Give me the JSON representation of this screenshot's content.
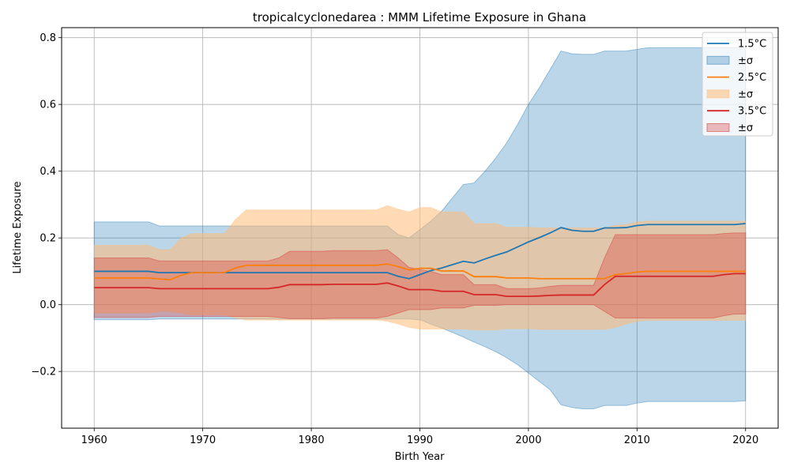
{
  "chart_data": {
    "type": "line",
    "title": "tropicalcyclonedarea : MMM Lifetime Exposure in Ghana",
    "xlabel": "Birth Year",
    "ylabel": "Lifetime Exposure",
    "xlim": [
      1957,
      2023
    ],
    "ylim": [
      -0.37,
      0.83
    ],
    "xticks": [
      1960,
      1970,
      1980,
      1990,
      2000,
      2010,
      2020
    ],
    "yticks": [
      -0.2,
      0.0,
      0.2,
      0.4,
      0.6,
      0.8
    ],
    "ytick_labels": [
      "−0.2",
      "0.0",
      "0.2",
      "0.4",
      "0.6",
      "0.8"
    ],
    "grid": true,
    "legend_position": "top-right",
    "x": [
      1960,
      1961,
      1962,
      1963,
      1964,
      1965,
      1966,
      1967,
      1968,
      1969,
      1970,
      1971,
      1972,
      1973,
      1974,
      1975,
      1976,
      1977,
      1978,
      1979,
      1980,
      1981,
      1982,
      1983,
      1984,
      1985,
      1986,
      1987,
      1988,
      1989,
      1990,
      1991,
      1992,
      1993,
      1994,
      1995,
      1996,
      1997,
      1998,
      1999,
      2000,
      2001,
      2002,
      2003,
      2004,
      2005,
      2006,
      2007,
      2008,
      2009,
      2010,
      2011,
      2012,
      2013,
      2014,
      2015,
      2016,
      2017,
      2018,
      2019,
      2020
    ],
    "series": [
      {
        "name": "1.5°C",
        "band_label": "±σ",
        "color": "#1f77b4",
        "band_color": "#1f77b4",
        "mean": [
          0.1,
          0.1,
          0.1,
          0.1,
          0.1,
          0.1,
          0.096,
          0.096,
          0.096,
          0.096,
          0.096,
          0.096,
          0.096,
          0.096,
          0.096,
          0.096,
          0.096,
          0.096,
          0.096,
          0.096,
          0.096,
          0.096,
          0.096,
          0.096,
          0.096,
          0.096,
          0.096,
          0.096,
          0.085,
          0.078,
          0.09,
          0.102,
          0.11,
          0.12,
          0.13,
          0.125,
          0.137,
          0.148,
          0.158,
          0.173,
          0.188,
          0.201,
          0.215,
          0.231,
          0.223,
          0.22,
          0.22,
          0.23,
          0.23,
          0.231,
          0.237,
          0.24,
          0.24,
          0.24,
          0.24,
          0.24,
          0.24,
          0.24,
          0.24,
          0.24,
          0.243
        ],
        "upper": [
          0.248,
          0.248,
          0.248,
          0.248,
          0.248,
          0.248,
          0.236,
          0.236,
          0.236,
          0.236,
          0.236,
          0.236,
          0.236,
          0.236,
          0.236,
          0.236,
          0.236,
          0.236,
          0.236,
          0.236,
          0.236,
          0.236,
          0.236,
          0.236,
          0.236,
          0.236,
          0.236,
          0.236,
          0.21,
          0.2,
          0.225,
          0.25,
          0.28,
          0.32,
          0.36,
          0.365,
          0.4,
          0.44,
          0.485,
          0.54,
          0.6,
          0.65,
          0.705,
          0.76,
          0.752,
          0.75,
          0.75,
          0.76,
          0.76,
          0.76,
          0.765,
          0.77,
          0.77,
          0.77,
          0.77,
          0.77,
          0.77,
          0.77,
          0.77,
          0.77,
          0.77
        ],
        "lower": [
          -0.045,
          -0.045,
          -0.045,
          -0.045,
          -0.045,
          -0.045,
          -0.043,
          -0.043,
          -0.043,
          -0.043,
          -0.043,
          -0.043,
          -0.043,
          -0.043,
          -0.043,
          -0.043,
          -0.043,
          -0.043,
          -0.043,
          -0.043,
          -0.043,
          -0.043,
          -0.043,
          -0.043,
          -0.043,
          -0.043,
          -0.043,
          -0.043,
          -0.043,
          -0.043,
          -0.045,
          -0.058,
          -0.07,
          -0.083,
          -0.097,
          -0.112,
          -0.126,
          -0.141,
          -0.159,
          -0.18,
          -0.205,
          -0.23,
          -0.255,
          -0.3,
          -0.308,
          -0.312,
          -0.312,
          -0.302,
          -0.302,
          -0.302,
          -0.295,
          -0.29,
          -0.29,
          -0.29,
          -0.29,
          -0.29,
          -0.29,
          -0.29,
          -0.29,
          -0.29,
          -0.288
        ]
      },
      {
        "name": "2.5°C",
        "band_label": "±σ",
        "color": "#ff7f0e",
        "band_color": "#ffbb78",
        "mean": [
          0.08,
          0.08,
          0.08,
          0.08,
          0.08,
          0.08,
          0.077,
          0.075,
          0.088,
          0.096,
          0.096,
          0.096,
          0.096,
          0.11,
          0.118,
          0.118,
          0.118,
          0.118,
          0.118,
          0.118,
          0.118,
          0.118,
          0.118,
          0.118,
          0.118,
          0.118,
          0.118,
          0.122,
          0.114,
          0.104,
          0.109,
          0.109,
          0.101,
          0.101,
          0.101,
          0.084,
          0.084,
          0.084,
          0.08,
          0.08,
          0.08,
          0.078,
          0.078,
          0.078,
          0.078,
          0.078,
          0.078,
          0.078,
          0.09,
          0.093,
          0.098,
          0.1,
          0.1,
          0.1,
          0.1,
          0.1,
          0.1,
          0.1,
          0.1,
          0.1,
          0.1
        ],
        "upper": [
          0.178,
          0.178,
          0.178,
          0.178,
          0.178,
          0.178,
          0.165,
          0.165,
          0.2,
          0.213,
          0.213,
          0.213,
          0.213,
          0.255,
          0.284,
          0.284,
          0.284,
          0.284,
          0.284,
          0.284,
          0.284,
          0.284,
          0.284,
          0.284,
          0.284,
          0.284,
          0.284,
          0.297,
          0.286,
          0.278,
          0.291,
          0.291,
          0.278,
          0.278,
          0.278,
          0.243,
          0.243,
          0.243,
          0.232,
          0.232,
          0.232,
          0.23,
          0.23,
          0.23,
          0.23,
          0.23,
          0.23,
          0.23,
          0.238,
          0.24,
          0.248,
          0.25,
          0.25,
          0.25,
          0.25,
          0.25,
          0.25,
          0.25,
          0.25,
          0.25,
          0.25
        ],
        "lower": [
          -0.025,
          -0.025,
          -0.025,
          -0.025,
          -0.025,
          -0.025,
          -0.02,
          -0.02,
          -0.025,
          -0.03,
          -0.03,
          -0.03,
          -0.03,
          -0.04,
          -0.046,
          -0.046,
          -0.046,
          -0.046,
          -0.046,
          -0.046,
          -0.046,
          -0.046,
          -0.046,
          -0.046,
          -0.046,
          -0.046,
          -0.046,
          -0.05,
          -0.058,
          -0.068,
          -0.073,
          -0.073,
          -0.073,
          -0.073,
          -0.073,
          -0.076,
          -0.076,
          -0.076,
          -0.072,
          -0.072,
          -0.072,
          -0.074,
          -0.074,
          -0.074,
          -0.074,
          -0.074,
          -0.074,
          -0.074,
          -0.068,
          -0.058,
          -0.05,
          -0.047,
          -0.047,
          -0.047,
          -0.047,
          -0.047,
          -0.047,
          -0.047,
          -0.047,
          -0.047,
          -0.047
        ]
      },
      {
        "name": "3.5°C",
        "band_label": "±σ",
        "color": "#d62728",
        "band_color": "#d62728",
        "mean": [
          0.051,
          0.051,
          0.051,
          0.051,
          0.051,
          0.051,
          0.048,
          0.048,
          0.048,
          0.048,
          0.048,
          0.048,
          0.048,
          0.048,
          0.048,
          0.048,
          0.048,
          0.052,
          0.06,
          0.06,
          0.06,
          0.06,
          0.061,
          0.061,
          0.061,
          0.061,
          0.061,
          0.065,
          0.056,
          0.045,
          0.045,
          0.045,
          0.04,
          0.04,
          0.04,
          0.03,
          0.03,
          0.03,
          0.025,
          0.025,
          0.025,
          0.026,
          0.028,
          0.029,
          0.029,
          0.029,
          0.029,
          0.06,
          0.085,
          0.085,
          0.085,
          0.085,
          0.085,
          0.085,
          0.085,
          0.085,
          0.085,
          0.085,
          0.09,
          0.093,
          0.093
        ],
        "upper": [
          0.14,
          0.14,
          0.14,
          0.14,
          0.14,
          0.14,
          0.131,
          0.131,
          0.131,
          0.131,
          0.131,
          0.131,
          0.131,
          0.131,
          0.131,
          0.131,
          0.131,
          0.14,
          0.16,
          0.16,
          0.16,
          0.16,
          0.162,
          0.162,
          0.162,
          0.162,
          0.162,
          0.165,
          0.14,
          0.112,
          0.105,
          0.1,
          0.09,
          0.09,
          0.09,
          0.06,
          0.06,
          0.06,
          0.048,
          0.048,
          0.048,
          0.05,
          0.055,
          0.058,
          0.058,
          0.058,
          0.058,
          0.14,
          0.21,
          0.21,
          0.21,
          0.21,
          0.21,
          0.21,
          0.21,
          0.21,
          0.21,
          0.21,
          0.213,
          0.215,
          0.215
        ],
        "lower": [
          -0.038,
          -0.038,
          -0.038,
          -0.038,
          -0.038,
          -0.038,
          -0.035,
          -0.035,
          -0.035,
          -0.035,
          -0.035,
          -0.035,
          -0.035,
          -0.035,
          -0.035,
          -0.035,
          -0.035,
          -0.038,
          -0.042,
          -0.042,
          -0.042,
          -0.042,
          -0.04,
          -0.04,
          -0.04,
          -0.04,
          -0.04,
          -0.035,
          -0.025,
          -0.015,
          -0.015,
          -0.015,
          -0.01,
          -0.01,
          -0.01,
          -0.002,
          -0.002,
          -0.002,
          0.0,
          0.0,
          0.0,
          0.0,
          0.0,
          0.0,
          0.0,
          0.0,
          0.0,
          -0.02,
          -0.04,
          -0.04,
          -0.04,
          -0.04,
          -0.04,
          -0.04,
          -0.04,
          -0.04,
          -0.04,
          -0.04,
          -0.033,
          -0.028,
          -0.028
        ]
      }
    ]
  }
}
